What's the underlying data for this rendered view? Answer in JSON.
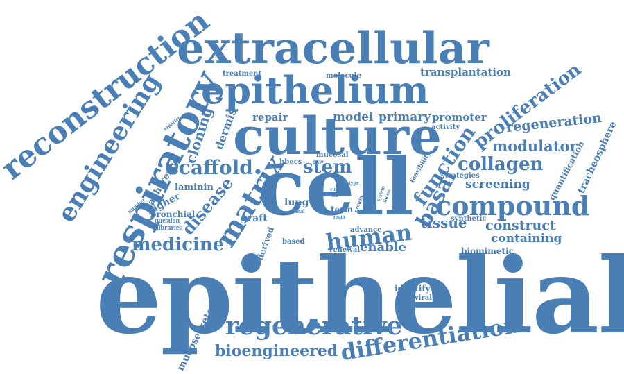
{
  "color": "#4a7fb5",
  "words": [
    "epithelial",
    "cell",
    "culture",
    "epithelium",
    "extracellular",
    "reconstruction",
    "respiratory",
    "engineering",
    "regenerative",
    "differentiation",
    "bioengineered",
    "compound",
    "human",
    "matrix",
    "scaffold",
    "medicine",
    "function",
    "basal",
    "collagen",
    "proliferation",
    "regeneration",
    "modulator",
    "screening",
    "tissue",
    "construct",
    "containing",
    "disease",
    "cloning",
    "stem",
    "transplantation",
    "enable",
    "model",
    "primary",
    "repair",
    "promoter",
    "dermis",
    "higher",
    "adherence",
    "laminin",
    "bronchial",
    "mucosecretory",
    "tracheosphere",
    "quantification",
    "derived",
    "graft",
    "lung",
    "term",
    "hbecs",
    "mucosal",
    "treatment",
    "molecule",
    "activity",
    "identify",
    "lentiviral",
    "biomimetic",
    "synthetic",
    "strategies",
    "advance",
    "renewal",
    "based",
    "feasibility",
    "question",
    "libraries",
    "number",
    "reporter",
    "layer",
    "vitro",
    "clonal",
    "protein",
    "system",
    "result",
    "type",
    "fitness",
    "self"
  ]
}
